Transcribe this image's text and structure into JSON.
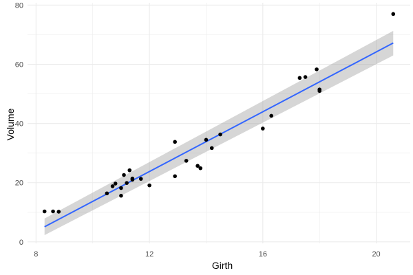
{
  "chart_data": {
    "type": "scatter",
    "xlabel": "Girth",
    "ylabel": "Volume",
    "xlim": [
      7.7,
      21.2
    ],
    "ylim": [
      -0.5,
      80.8
    ],
    "x_ticks": [
      8,
      12,
      16,
      20
    ],
    "y_ticks": [
      0,
      20,
      40,
      60,
      80
    ],
    "x_tick_labels": [
      "8",
      "12",
      "16",
      "20"
    ],
    "y_tick_labels": [
      "0",
      "20",
      "40",
      "60",
      "80"
    ],
    "grid": true,
    "legend": "none",
    "series": [
      {
        "type": "scatter",
        "x": [
          8.3,
          8.6,
          8.8,
          10.5,
          10.7,
          10.8,
          11.0,
          11.0,
          11.1,
          11.2,
          11.3,
          11.4,
          11.4,
          11.7,
          12.0,
          12.9,
          12.9,
          13.3,
          13.7,
          13.8,
          14.0,
          14.2,
          14.5,
          16.0,
          16.3,
          17.3,
          17.5,
          17.9,
          18.0,
          18.0,
          20.6
        ],
        "y": [
          10.3,
          10.3,
          10.2,
          16.4,
          18.8,
          19.7,
          15.6,
          18.2,
          22.6,
          19.9,
          24.2,
          21.0,
          21.4,
          21.3,
          19.1,
          22.2,
          33.8,
          27.4,
          25.7,
          24.9,
          34.5,
          31.7,
          36.3,
          38.3,
          42.6,
          55.4,
          55.7,
          58.3,
          51.5,
          51.0,
          77.0
        ],
        "color": "#000000"
      },
      {
        "type": "line",
        "x": [
          8.3,
          20.6
        ],
        "y": [
          5.1,
          67.2
        ],
        "color": "#3366ff"
      }
    ],
    "confidence_band": {
      "x": [
        8.3,
        20.6
      ],
      "lower": [
        2.3,
        63.0
      ],
      "upper": [
        7.9,
        71.3
      ],
      "color": "#999999"
    },
    "colors": {
      "panel_background": "#ffffff",
      "gridline": "#ebebeb",
      "points": "#000000",
      "fit_line": "#3366ff",
      "band": "#999999",
      "tick_text": "#4d4d4d",
      "axis_title": "#000000"
    }
  }
}
